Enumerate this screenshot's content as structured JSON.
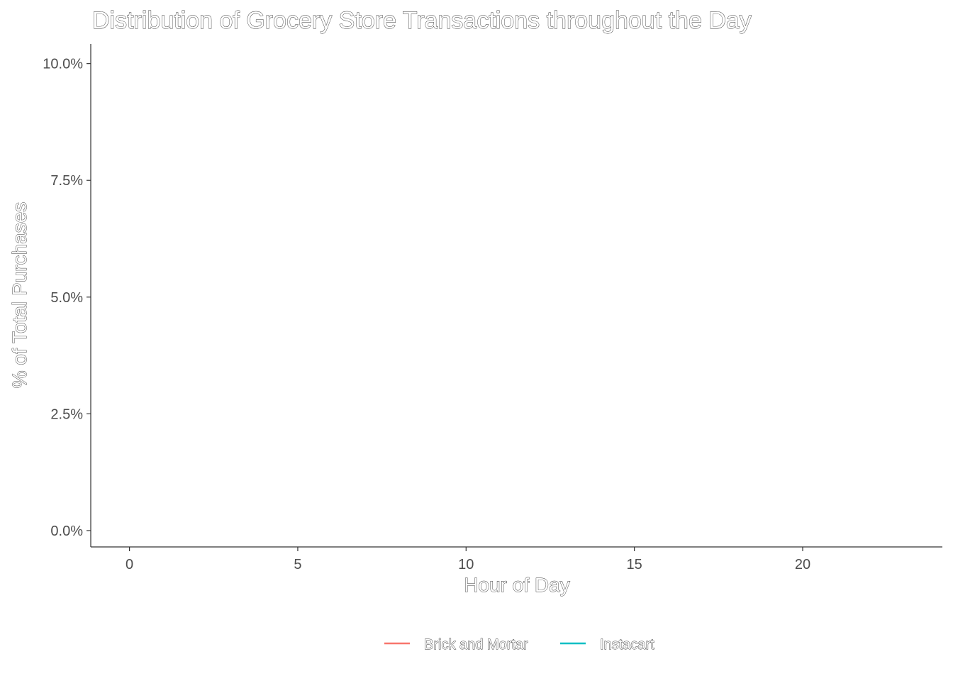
{
  "chart_data": {
    "type": "line",
    "title": "Distribution of Grocery Store Transactions throughout the Day",
    "xlabel": "Hour of Day",
    "ylabel": "% of Total Purchases",
    "xlim": [
      -1.15,
      24.15
    ],
    "ylim": [
      -0.0035,
      0.1042
    ],
    "x_ticks": [
      0,
      5,
      10,
      15,
      20
    ],
    "x_tick_labels": [
      "0",
      "5",
      "10",
      "15",
      "20"
    ],
    "y_ticks": [
      0,
      0.025,
      0.05,
      0.075,
      0.1
    ],
    "y_tick_labels": [
      "0.0%",
      "2.5%",
      "5.0%",
      "7.5%",
      "10.0%"
    ],
    "grid": false,
    "legend_position": "bottom",
    "series": [
      {
        "name": "Brick and Mortar",
        "color": "#f8766d",
        "x": [],
        "y": []
      },
      {
        "name": "Instacart",
        "color": "#00bfc4",
        "x": [],
        "y": []
      }
    ]
  }
}
